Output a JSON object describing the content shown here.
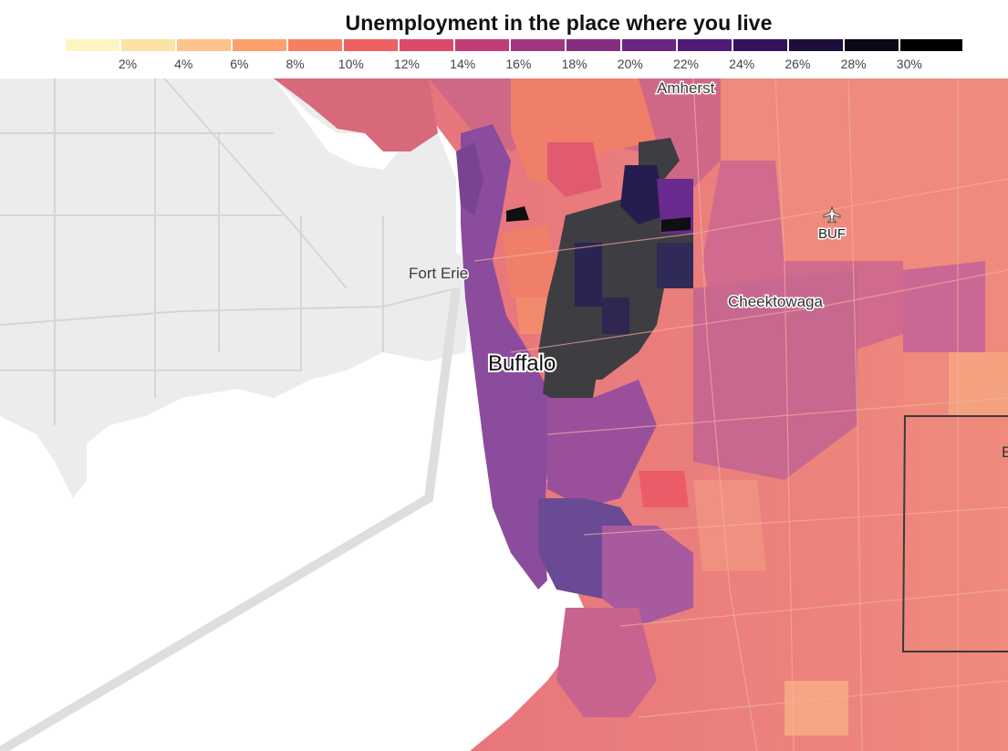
{
  "legend": {
    "title": "Unemployment in the place where you live",
    "swatches": [
      "#fdf6c4",
      "#fde2a6",
      "#fdc38a",
      "#fca06e",
      "#f77e63",
      "#ee6061",
      "#db4a6a",
      "#c13d75",
      "#a23580",
      "#852d81",
      "#6b2480",
      "#4f1b78",
      "#33125c",
      "#1c0e3c",
      "#0a0816",
      "#000000"
    ],
    "ticks": [
      "2%",
      "4%",
      "6%",
      "8%",
      "10%",
      "12%",
      "14%",
      "16%",
      "18%",
      "20%",
      "22%",
      "24%",
      "26%",
      "28%",
      "30%"
    ]
  },
  "map": {
    "labels": {
      "amherst": "Amherst",
      "fort_erie": "Fort Erie",
      "cheektowaga": "Cheektowaga",
      "buffalo": "Buffalo",
      "airport": "BUF",
      "edge_letter": "E"
    },
    "icons": {
      "airport": "airplane-icon"
    },
    "colors": {
      "land": "#ececec",
      "water": "#ffffff",
      "road": "#d8d8d8",
      "county_border": "#3a3a3a",
      "no_data_dark": "#333333"
    }
  }
}
